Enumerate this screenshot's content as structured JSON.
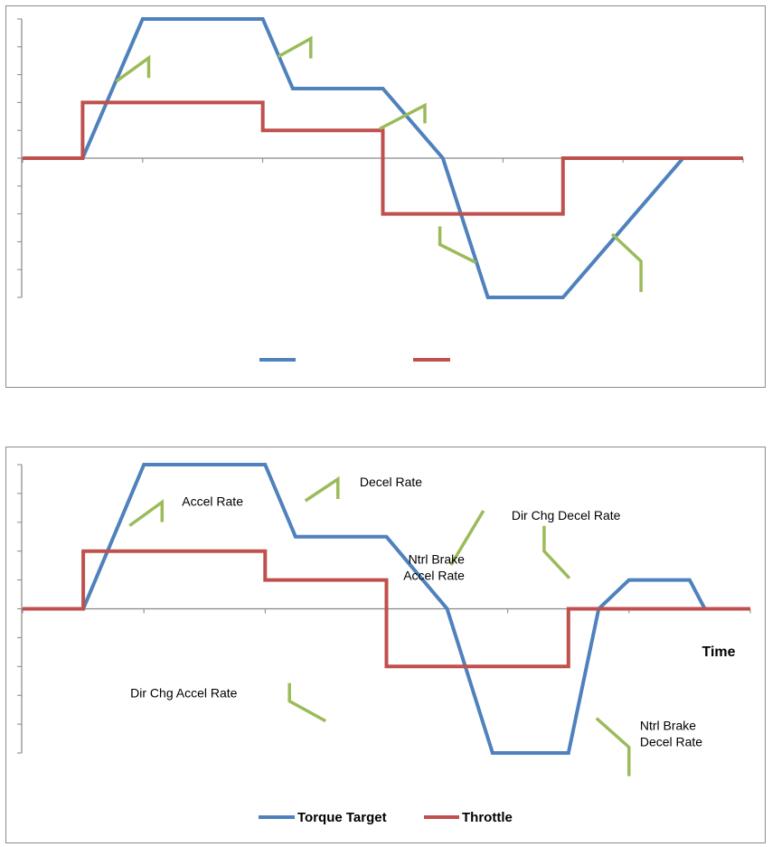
{
  "colors": {
    "torque": "#4f81bd",
    "throttle": "#c0504d",
    "callout": "#9bbb59",
    "axis": "#868686",
    "frame": "#8c8c8c"
  },
  "chart_data": [
    {
      "type": "line",
      "title": "",
      "xlabel": "",
      "ylabel": "",
      "ylim": [
        -5,
        5
      ],
      "xlim": [
        0,
        12
      ],
      "grid": false,
      "legend_placement": "bottom",
      "series": [
        {
          "name": "",
          "color_key": "torque",
          "x": [
            0,
            1,
            2,
            4,
            4.5,
            6,
            7,
            7.75,
            9,
            11,
            12
          ],
          "y": [
            0,
            0,
            5,
            5,
            2.5,
            2.5,
            0,
            -5,
            -5,
            0,
            0
          ]
        },
        {
          "name": "",
          "color_key": "throttle",
          "x": [
            0,
            1,
            1,
            4,
            4,
            6,
            6,
            9,
            9,
            12
          ],
          "y": [
            0,
            0,
            2,
            2,
            1,
            1,
            -2,
            -2,
            0,
            0
          ]
        }
      ],
      "annotations": [
        {
          "label": "",
          "x": 2.1,
          "y": 3.6
        },
        {
          "label": "",
          "x": 4.8,
          "y": 4.3
        },
        {
          "label": "",
          "x": 6.7,
          "y": 1.9
        },
        {
          "label": "",
          "x": 6.95,
          "y": -3.1
        },
        {
          "label": "",
          "x": 10.3,
          "y": -3.7
        }
      ]
    },
    {
      "type": "line",
      "title": "",
      "xlabel": "Time",
      "ylabel": "",
      "ylim": [
        -5,
        5
      ],
      "xlim": [
        0,
        12
      ],
      "grid": false,
      "legend_placement": "bottom",
      "series": [
        {
          "name": "Torque Target",
          "color_key": "torque",
          "x": [
            0,
            1,
            2,
            4,
            4.5,
            6,
            7,
            7.75,
            9,
            9.5,
            10,
            11,
            11.25,
            12
          ],
          "y": [
            0,
            0,
            5,
            5,
            2.5,
            2.5,
            0,
            -5,
            -5,
            0,
            1,
            1,
            0,
            0
          ]
        },
        {
          "name": "Throttle",
          "color_key": "throttle",
          "x": [
            0,
            1,
            1,
            4,
            4,
            6,
            6,
            9,
            9,
            12
          ],
          "y": [
            0,
            0,
            2,
            2,
            1,
            1,
            -2,
            -2,
            0,
            0
          ]
        }
      ],
      "annotations": [
        {
          "label": "Accel Rate",
          "x": 2.3,
          "y": 3.7
        },
        {
          "label": "Decel Rate",
          "x": 5.2,
          "y": 4.5
        },
        {
          "label": "Dir Chg Decel Rate",
          "x": 7.6,
          "y": 3.4
        },
        {
          "label": "Ntrl Brake Accel Rate",
          "x": 8.6,
          "y": 2.0
        },
        {
          "label": "Dir Chg Accel Rate",
          "x": 4.4,
          "y": -3.2
        },
        {
          "label": "Ntrl Brake Decel Rate",
          "x": 10.0,
          "y": -4.8
        }
      ]
    }
  ]
}
